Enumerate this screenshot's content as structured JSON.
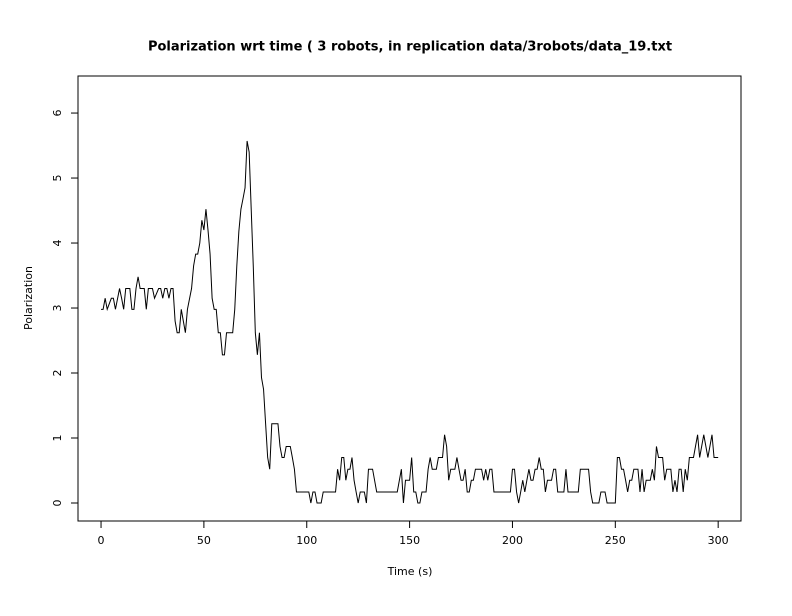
{
  "chart_data": {
    "type": "line",
    "title": "Polarization wrt time ( 3 robots, in replication  data/3robots/data_19.txt",
    "x_label": "Time (s)",
    "y_label": "Polarization",
    "xlim": [
      -11.2,
      311.1
    ],
    "ylim": [
      -0.277,
      6.57
    ],
    "xticks": [
      0,
      50,
      100,
      150,
      200,
      250,
      300
    ],
    "yticks": [
      0,
      1,
      2,
      3,
      4,
      5,
      6
    ],
    "grid": false,
    "x": [
      0,
      1,
      2,
      3,
      5,
      6,
      7,
      9,
      10,
      11,
      12,
      14,
      15,
      16,
      17,
      18,
      19,
      21,
      22,
      23,
      25,
      26,
      28,
      29,
      30,
      31,
      32,
      33,
      34,
      35,
      36,
      37,
      38,
      39,
      40,
      41,
      42,
      44,
      45,
      46,
      47,
      48,
      49,
      50,
      51,
      52,
      53,
      54,
      55,
      56,
      57,
      58,
      59,
      60,
      61,
      62,
      64,
      65,
      66,
      67,
      68,
      69,
      70,
      71,
      72,
      73,
      74,
      75,
      76,
      77,
      78,
      79,
      80,
      81,
      82,
      83,
      84,
      86,
      87,
      88,
      89,
      90,
      92,
      93,
      94,
      95,
      100,
      101,
      102,
      103,
      104,
      105,
      107,
      108,
      114,
      115,
      116,
      117,
      118,
      119,
      120,
      121,
      122,
      123,
      124,
      125,
      126,
      128,
      129,
      130,
      132,
      134,
      144,
      146,
      147,
      148,
      150,
      151,
      152,
      153,
      154,
      155,
      156,
      158,
      159,
      160,
      161,
      163,
      164,
      166,
      167,
      168,
      169,
      170,
      172,
      173,
      174,
      175,
      176,
      177,
      178,
      179,
      180,
      181,
      182,
      185,
      186,
      187,
      188,
      189,
      190,
      191,
      199,
      200,
      201,
      202,
      203,
      204,
      205,
      206,
      207,
      208,
      209,
      210,
      211,
      212,
      213,
      214,
      215,
      216,
      217,
      219,
      220,
      221,
      222,
      225,
      226,
      227,
      232,
      233,
      237,
      238,
      239,
      242,
      243,
      245,
      246,
      250,
      251,
      252,
      253,
      254,
      255,
      256,
      257,
      258,
      259,
      261,
      262,
      263,
      264,
      265,
      267,
      268,
      269,
      270,
      271,
      273,
      274,
      275,
      277,
      278,
      279,
      280,
      281,
      282,
      283,
      284,
      285,
      286,
      288,
      290,
      291,
      293,
      295,
      297,
      298,
      300
    ],
    "series": [
      {
        "name": "Polarization",
        "color": "#000000",
        "values": [
          2.98,
          2.98,
          3.15,
          2.98,
          3.15,
          3.15,
          2.98,
          3.3,
          3.15,
          2.98,
          3.3,
          3.3,
          2.98,
          2.98,
          3.3,
          3.48,
          3.3,
          3.3,
          2.98,
          3.3,
          3.3,
          3.15,
          3.3,
          3.3,
          3.15,
          3.3,
          3.3,
          3.15,
          3.3,
          3.3,
          2.8,
          2.62,
          2.62,
          2.98,
          2.8,
          2.62,
          2.98,
          3.3,
          3.65,
          3.83,
          3.83,
          4.0,
          4.35,
          4.2,
          4.52,
          4.2,
          3.83,
          3.15,
          2.98,
          2.98,
          2.62,
          2.62,
          2.28,
          2.28,
          2.62,
          2.62,
          2.62,
          2.98,
          3.65,
          4.18,
          4.52,
          4.68,
          4.85,
          5.57,
          5.4,
          4.52,
          3.65,
          2.62,
          2.28,
          2.62,
          1.93,
          1.75,
          1.22,
          0.7,
          0.52,
          1.22,
          1.22,
          1.22,
          0.87,
          0.7,
          0.7,
          0.87,
          0.87,
          0.7,
          0.52,
          0.17,
          0.17,
          0.17,
          0,
          0.17,
          0.17,
          0,
          0,
          0.17,
          0.17,
          0.52,
          0.35,
          0.7,
          0.7,
          0.35,
          0.52,
          0.52,
          0.7,
          0.35,
          0.17,
          0,
          0.17,
          0.17,
          0,
          0.52,
          0.52,
          0.17,
          0.17,
          0.52,
          0,
          0.35,
          0.35,
          0.7,
          0.17,
          0.17,
          0,
          0,
          0.17,
          0.17,
          0.52,
          0.7,
          0.52,
          0.52,
          0.7,
          0.7,
          1.05,
          0.87,
          0.35,
          0.52,
          0.52,
          0.7,
          0.52,
          0.35,
          0.35,
          0.52,
          0.17,
          0.17,
          0.35,
          0.35,
          0.52,
          0.52,
          0.35,
          0.52,
          0.35,
          0.52,
          0.52,
          0.17,
          0.17,
          0.52,
          0.52,
          0.17,
          0,
          0.17,
          0.35,
          0.17,
          0.35,
          0.52,
          0.35,
          0.35,
          0.52,
          0.52,
          0.7,
          0.52,
          0.52,
          0.17,
          0.35,
          0.35,
          0.52,
          0.52,
          0.17,
          0.17,
          0.52,
          0.17,
          0.17,
          0.52,
          0.52,
          0.17,
          0,
          0,
          0.17,
          0.17,
          0,
          0,
          0.7,
          0.7,
          0.52,
          0.52,
          0.35,
          0.17,
          0.35,
          0.35,
          0.52,
          0.52,
          0.17,
          0.52,
          0.17,
          0.35,
          0.35,
          0.52,
          0.35,
          0.87,
          0.7,
          0.7,
          0.35,
          0.52,
          0.52,
          0.17,
          0.35,
          0.17,
          0.52,
          0.52,
          0.17,
          0.52,
          0.35,
          0.7,
          0.7,
          1.05,
          0.7,
          1.05,
          0.7,
          1.05,
          0.7,
          0.7
        ]
      }
    ]
  }
}
